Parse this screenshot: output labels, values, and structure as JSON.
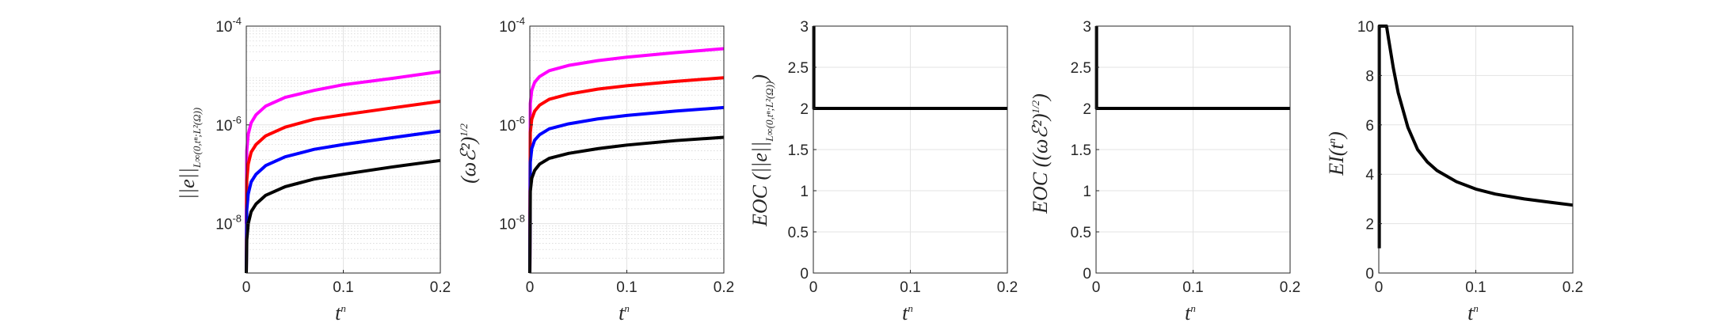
{
  "chart_data": [
    {
      "type": "line",
      "xlabel": "t^n",
      "ylabel": "||e||_{L^∞(0,t^n;L^2(Ω))}",
      "yscale": "log",
      "xlim": [
        0,
        0.2
      ],
      "ylim": [
        1e-09,
        0.0001
      ],
      "xticks": [
        0,
        0.1,
        0.2
      ],
      "xtick_labels": [
        "0",
        "0.1",
        "0.2"
      ],
      "yticks": [
        1e-08,
        1e-06,
        0.0001
      ],
      "ytick_labels": [
        {
          "base": "10",
          "exp": "-8"
        },
        {
          "base": "10",
          "exp": "-6"
        },
        {
          "base": "10",
          "exp": "-4"
        }
      ],
      "grid": true,
      "series": [
        {
          "color": "#ff00ff",
          "x": [
            0,
            0.0005,
            0.002,
            0.005,
            0.01,
            0.02,
            0.04,
            0.07,
            0.1,
            0.15,
            0.2
          ],
          "y": [
            1e-08,
            3e-07,
            6.5e-07,
            1.1e-06,
            1.6e-06,
            2.4e-06,
            3.6e-06,
            5e-06,
            6.5e-06,
            8.7e-06,
            1.2e-05
          ]
        },
        {
          "color": "#ff0000",
          "x": [
            0,
            0.0005,
            0.002,
            0.005,
            0.01,
            0.02,
            0.04,
            0.07,
            0.1,
            0.15,
            0.2
          ],
          "y": [
            1e-09,
            7.5e-08,
            1.6e-07,
            2.8e-07,
            4e-07,
            6e-07,
            9e-07,
            1.3e-06,
            1.6e-06,
            2.2e-06,
            3e-06
          ]
        },
        {
          "color": "#0000ff",
          "x": [
            0,
            0.0005,
            0.002,
            0.005,
            0.01,
            0.02,
            0.04,
            0.07,
            0.1,
            0.15,
            0.2
          ],
          "y": [
            1e-09,
            1.9e-08,
            4e-08,
            7e-08,
            1e-07,
            1.5e-07,
            2.25e-07,
            3.2e-07,
            4e-07,
            5.5e-07,
            7.5e-07
          ]
        },
        {
          "color": "#000000",
          "x": [
            0,
            0.0005,
            0.002,
            0.005,
            0.01,
            0.02,
            0.04,
            0.07,
            0.1,
            0.15,
            0.2
          ],
          "y": [
            1e-09,
            4.7e-09,
            1e-08,
            1.75e-08,
            2.5e-08,
            3.75e-08,
            5.6e-08,
            8e-08,
            1e-07,
            1.4e-07,
            1.9e-07
          ]
        }
      ]
    },
    {
      "type": "line",
      "xlabel": "t^n",
      "ylabel": "(ωℰ²)^{1/2}",
      "yscale": "log",
      "xlim": [
        0,
        0.2
      ],
      "ylim": [
        1e-09,
        0.0001
      ],
      "xticks": [
        0,
        0.1,
        0.2
      ],
      "xtick_labels": [
        "0",
        "0.1",
        "0.2"
      ],
      "yticks": [
        1e-08,
        1e-06,
        0.0001
      ],
      "ytick_labels": [
        {
          "base": "10",
          "exp": "-8"
        },
        {
          "base": "10",
          "exp": "-6"
        },
        {
          "base": "10",
          "exp": "-4"
        }
      ],
      "grid": true,
      "series": [
        {
          "color": "#ff00ff",
          "x": [
            0,
            0.0005,
            0.002,
            0.005,
            0.01,
            0.02,
            0.04,
            0.07,
            0.1,
            0.15,
            0.2
          ],
          "y": [
            1e-09,
            2.7e-06,
            5e-06,
            7.3e-06,
            9.5e-06,
            1.25e-05,
            1.6e-05,
            2e-05,
            2.35e-05,
            2.9e-05,
            3.5e-05
          ]
        },
        {
          "color": "#ff0000",
          "x": [
            0,
            0.0005,
            0.002,
            0.005,
            0.01,
            0.02,
            0.04,
            0.07,
            0.1,
            0.15,
            0.2
          ],
          "y": [
            1e-09,
            7e-07,
            1.3e-06,
            1.9e-06,
            2.5e-06,
            3.3e-06,
            4.2e-06,
            5.3e-06,
            6.2e-06,
            7.6e-06,
            9e-06
          ]
        },
        {
          "color": "#0000ff",
          "x": [
            0,
            0.0005,
            0.002,
            0.005,
            0.01,
            0.02,
            0.04,
            0.07,
            0.1,
            0.15,
            0.2
          ],
          "y": [
            1e-09,
            1.75e-07,
            3.3e-07,
            4.9e-07,
            6.3e-07,
            8.3e-07,
            1.05e-06,
            1.32e-06,
            1.55e-06,
            1.9e-06,
            2.25e-06
          ]
        },
        {
          "color": "#000000",
          "x": [
            0,
            0.0005,
            0.002,
            0.005,
            0.01,
            0.02,
            0.04,
            0.07,
            0.1,
            0.15,
            0.2
          ],
          "y": [
            1e-09,
            4.5e-08,
            8.3e-08,
            1.2e-07,
            1.6e-07,
            2.1e-07,
            2.65e-07,
            3.3e-07,
            3.9e-07,
            4.8e-07,
            5.6e-07
          ]
        }
      ]
    },
    {
      "type": "line",
      "xlabel": "t^n",
      "ylabel": "EOC (||e||_{L^∞(0,t^n;L^2(Ω))})",
      "xlim": [
        0,
        0.2
      ],
      "ylim": [
        0,
        3
      ],
      "xticks": [
        0,
        0.1,
        0.2
      ],
      "xtick_labels": [
        "0",
        "0.1",
        "0.2"
      ],
      "yticks": [
        0,
        0.5,
        1,
        1.5,
        2,
        2.5,
        3
      ],
      "ytick_labels": [
        "0",
        "0.5",
        "1",
        "1.5",
        "2",
        "2.5",
        "3"
      ],
      "grid": true,
      "series": [
        {
          "color": "#000000",
          "x": [
            0.0005,
            0.0005,
            0.2
          ],
          "y": [
            3,
            2,
            2
          ]
        }
      ]
    },
    {
      "type": "line",
      "xlabel": "t^n",
      "ylabel": "EOC ((ωℰ²)^{1/2})",
      "xlim": [
        0,
        0.2
      ],
      "ylim": [
        0,
        3
      ],
      "xticks": [
        0,
        0.1,
        0.2
      ],
      "xtick_labels": [
        "0",
        "0.1",
        "0.2"
      ],
      "yticks": [
        0,
        0.5,
        1,
        1.5,
        2,
        2.5,
        3
      ],
      "ytick_labels": [
        "0",
        "0.5",
        "1",
        "1.5",
        "2",
        "2.5",
        "3"
      ],
      "grid": true,
      "series": [
        {
          "color": "#000000",
          "x": [
            0.0005,
            0.0005,
            0.2
          ],
          "y": [
            3,
            2,
            2
          ]
        }
      ]
    },
    {
      "type": "line",
      "xlabel": "t^n",
      "ylabel": "EI(t^n)",
      "xlim": [
        0,
        0.2
      ],
      "ylim": [
        0,
        10
      ],
      "xticks": [
        0,
        0.1,
        0.2
      ],
      "xtick_labels": [
        "0",
        "0.1",
        "0.2"
      ],
      "yticks": [
        0,
        2,
        4,
        6,
        8,
        10
      ],
      "ytick_labels": [
        "0",
        "2",
        "4",
        "6",
        "8",
        "10"
      ],
      "grid": true,
      "series": [
        {
          "color": "#000000",
          "x": [
            0.0005,
            0.0005,
            0.008,
            0.01,
            0.015,
            0.02,
            0.03,
            0.04,
            0.05,
            0.06,
            0.08,
            0.1,
            0.12,
            0.15,
            0.18,
            0.2
          ],
          "y": [
            1,
            10,
            10,
            9.5,
            8.3,
            7.3,
            5.9,
            5.0,
            4.5,
            4.15,
            3.7,
            3.4,
            3.2,
            3.0,
            2.85,
            2.75
          ]
        }
      ]
    }
  ]
}
